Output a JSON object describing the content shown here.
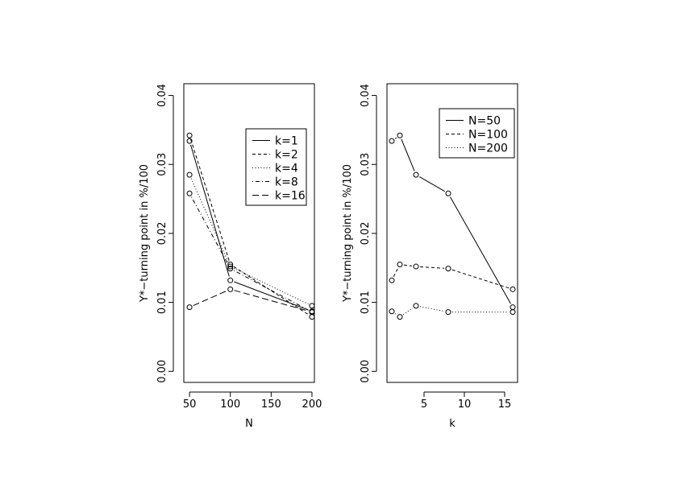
{
  "chart_data": [
    {
      "type": "line",
      "xlabel": "N",
      "ylabel": "Y*−turning point in %/100",
      "x": [
        50,
        100,
        200
      ],
      "x_tick_labels": [
        "50",
        "100",
        "150",
        "200"
      ],
      "x_ticks": [
        50,
        100,
        150,
        200
      ],
      "xlim": [
        43,
        203
      ],
      "y_tick_labels": [
        "0.00",
        "0.01",
        "0.02",
        "0.03",
        "0.04"
      ],
      "y_ticks": [
        0,
        0.01,
        0.02,
        0.03,
        0.04
      ],
      "ylim": [
        -0.0016,
        0.0417
      ],
      "legend_position": "top-right",
      "series": [
        {
          "name": "k=1",
          "dash": "solid",
          "values": [
            0.0334,
            0.0132,
            0.0087
          ]
        },
        {
          "name": "k=2",
          "dash": "dashed",
          "values": [
            0.0342,
            0.0155,
            0.0079
          ]
        },
        {
          "name": "k=4",
          "dash": "dotted",
          "values": [
            0.0285,
            0.0152,
            0.0095
          ]
        },
        {
          "name": "k=8",
          "dash": "dotdash",
          "values": [
            0.0258,
            0.0149,
            0.0086
          ]
        },
        {
          "name": "k=16",
          "dash": "longdash",
          "values": [
            0.0093,
            0.0119,
            0.0086
          ]
        }
      ]
    },
    {
      "type": "line",
      "xlabel": "k",
      "ylabel": "Y*−turning point in %/100",
      "x": [
        1,
        2,
        4,
        8,
        16
      ],
      "x_tick_labels": [
        "5",
        "10",
        "15"
      ],
      "x_ticks": [
        5,
        10,
        15
      ],
      "xlim": [
        0.4,
        16.6
      ],
      "y_tick_labels": [
        "0.00",
        "0.01",
        "0.02",
        "0.03",
        "0.04"
      ],
      "y_ticks": [
        0,
        0.01,
        0.02,
        0.03,
        0.04
      ],
      "ylim": [
        -0.0016,
        0.0417
      ],
      "legend_position": "top-right",
      "series": [
        {
          "name": "N=50",
          "dash": "solid",
          "values": [
            0.0334,
            0.0342,
            0.0285,
            0.0258,
            0.0093
          ]
        },
        {
          "name": "N=100",
          "dash": "dashed",
          "values": [
            0.0132,
            0.0155,
            0.0152,
            0.0149,
            0.0119
          ]
        },
        {
          "name": "N=200",
          "dash": "dotted",
          "values": [
            0.0087,
            0.0079,
            0.0095,
            0.0086,
            0.0086
          ]
        }
      ]
    }
  ]
}
